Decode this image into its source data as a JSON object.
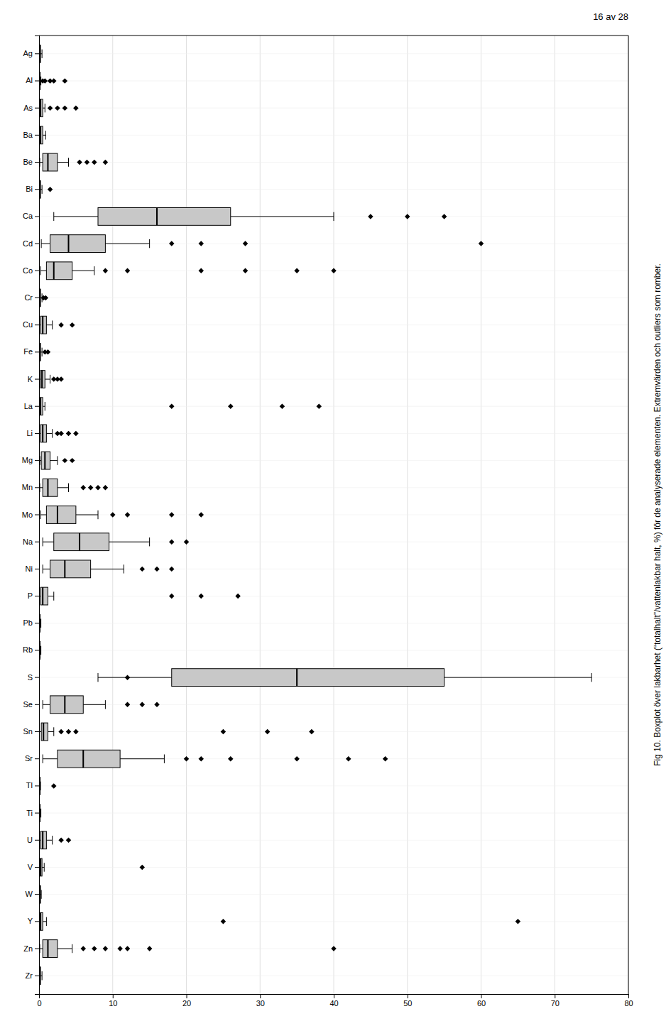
{
  "chart_data": {
    "type": "box",
    "orientation": "horizontal",
    "title": "Fig 10. Boxplot över lakbarhet (“totalhalt”/vattenlakbar halt, %) för de analyserade elementen. Extremvärden och outliers som romber.",
    "annotations": [
      {
        "text": "16 av 28"
      }
    ],
    "categories": [
      "Zr",
      "Zn",
      "Y",
      "W",
      "V",
      "U",
      "Ti",
      "Tl",
      "Sr",
      "Sn",
      "Se",
      "S",
      "Rb",
      "Pb",
      "P",
      "Ni",
      "Na",
      "Mo",
      "Mn",
      "Mg",
      "Li",
      "La",
      "K",
      "Fe",
      "Cu",
      "Cr",
      "Co",
      "Cd",
      "Ca",
      "Bi",
      "Be",
      "Ba",
      "As",
      "Al",
      "Ag"
    ],
    "q1": [
      0.05,
      0.5,
      0.1,
      0.05,
      0.1,
      0.2,
      0.05,
      0.05,
      2.5,
      0.3,
      1.5,
      18.0,
      0.05,
      0.05,
      0.2,
      1.5,
      2.0,
      1.0,
      0.5,
      0.3,
      0.2,
      0.1,
      0.2,
      0.05,
      0.2,
      0.05,
      1.0,
      1.5,
      8.0,
      0.05,
      0.5,
      0.1,
      0.1,
      0.05,
      0.05
    ],
    "median": [
      0.1,
      1.2,
      0.2,
      0.1,
      0.2,
      0.5,
      0.08,
      0.1,
      6.0,
      0.6,
      3.5,
      35.0,
      0.08,
      0.08,
      0.5,
      3.5,
      5.5,
      2.5,
      1.2,
      0.8,
      0.5,
      0.2,
      0.4,
      0.1,
      0.5,
      0.1,
      2.0,
      4.0,
      16.0,
      0.1,
      1.2,
      0.2,
      0.2,
      0.1,
      0.1
    ],
    "q3": [
      0.2,
      2.5,
      0.5,
      0.2,
      0.4,
      1.0,
      0.15,
      0.15,
      11.0,
      1.2,
      6.0,
      55.0,
      0.15,
      0.15,
      1.2,
      7.0,
      9.5,
      5.0,
      2.5,
      1.5,
      1.0,
      0.5,
      0.8,
      0.2,
      1.0,
      0.2,
      4.5,
      9.0,
      26.0,
      0.2,
      2.5,
      0.5,
      0.5,
      0.15,
      0.2
    ],
    "whislo": [
      0.0,
      0.1,
      0.0,
      0.0,
      0.0,
      0.0,
      0.0,
      0.0,
      0.5,
      0.0,
      0.5,
      8.0,
      0.0,
      0.0,
      0.0,
      0.5,
      0.5,
      0.2,
      0.1,
      0.1,
      0.0,
      0.0,
      0.0,
      0.0,
      0.0,
      0.0,
      0.2,
      0.3,
      2.0,
      0.0,
      0.1,
      0.0,
      0.0,
      0.0,
      0.0
    ],
    "whishi": [
      0.4,
      4.5,
      1.0,
      0.3,
      0.7,
      1.8,
      0.25,
      0.2,
      17.0,
      2.0,
      9.0,
      75.0,
      0.25,
      0.25,
      2.0,
      11.5,
      15.0,
      8.0,
      4.0,
      2.5,
      1.8,
      0.8,
      1.5,
      0.4,
      1.8,
      0.4,
      7.5,
      15.0,
      40.0,
      0.4,
      4.0,
      0.9,
      0.8,
      0.25,
      0.4
    ],
    "fliers": [
      [],
      [
        6.0,
        7.5,
        9.0,
        11.0,
        12.0,
        15.0,
        40.0
      ],
      [
        25.0,
        65.0
      ],
      [],
      [
        14.0
      ],
      [
        3.0,
        4.0
      ],
      [],
      [
        2.0
      ],
      [
        20.0,
        22.0,
        26.0,
        35.0,
        42.0,
        47.0
      ],
      [
        3.0,
        4.0,
        5.0,
        25.0,
        31.0,
        37.0
      ],
      [
        12.0,
        14.0,
        16.0
      ],
      [
        12.0
      ],
      [],
      [],
      [
        18.0,
        22.0,
        27.0
      ],
      [
        14.0,
        16.0,
        18.0
      ],
      [
        18.0,
        20.0
      ],
      [
        10.0,
        12.0,
        18.0,
        22.0
      ],
      [
        6.0,
        7.0,
        8.0,
        9.0
      ],
      [
        3.5,
        4.5
      ],
      [
        2.5,
        3.0,
        4.0,
        5.0
      ],
      [
        18.0,
        26.0,
        33.0,
        38.0
      ],
      [
        2.0,
        2.5,
        3.0
      ],
      [
        0.8,
        1.2
      ],
      [
        3.0,
        4.5
      ],
      [
        0.6,
        0.9
      ],
      [
        9.0,
        12.0,
        22.0,
        28.0,
        35.0,
        40.0
      ],
      [
        18.0,
        22.0,
        28.0,
        60.0
      ],
      [
        45.0,
        50.0,
        55.0
      ],
      [
        1.5
      ],
      [
        5.5,
        6.5,
        7.5,
        9.0
      ],
      [],
      [
        1.5,
        2.5,
        3.5,
        5.0
      ],
      [
        0.5,
        0.8,
        1.5,
        2.0,
        3.5
      ],
      []
    ],
    "xlim": [
      0,
      80
    ],
    "xticks": [
      0,
      10,
      20,
      30,
      40,
      50,
      60,
      70,
      80
    ],
    "grid": true,
    "color": "#c8c8c8",
    "marker": "diamond"
  }
}
